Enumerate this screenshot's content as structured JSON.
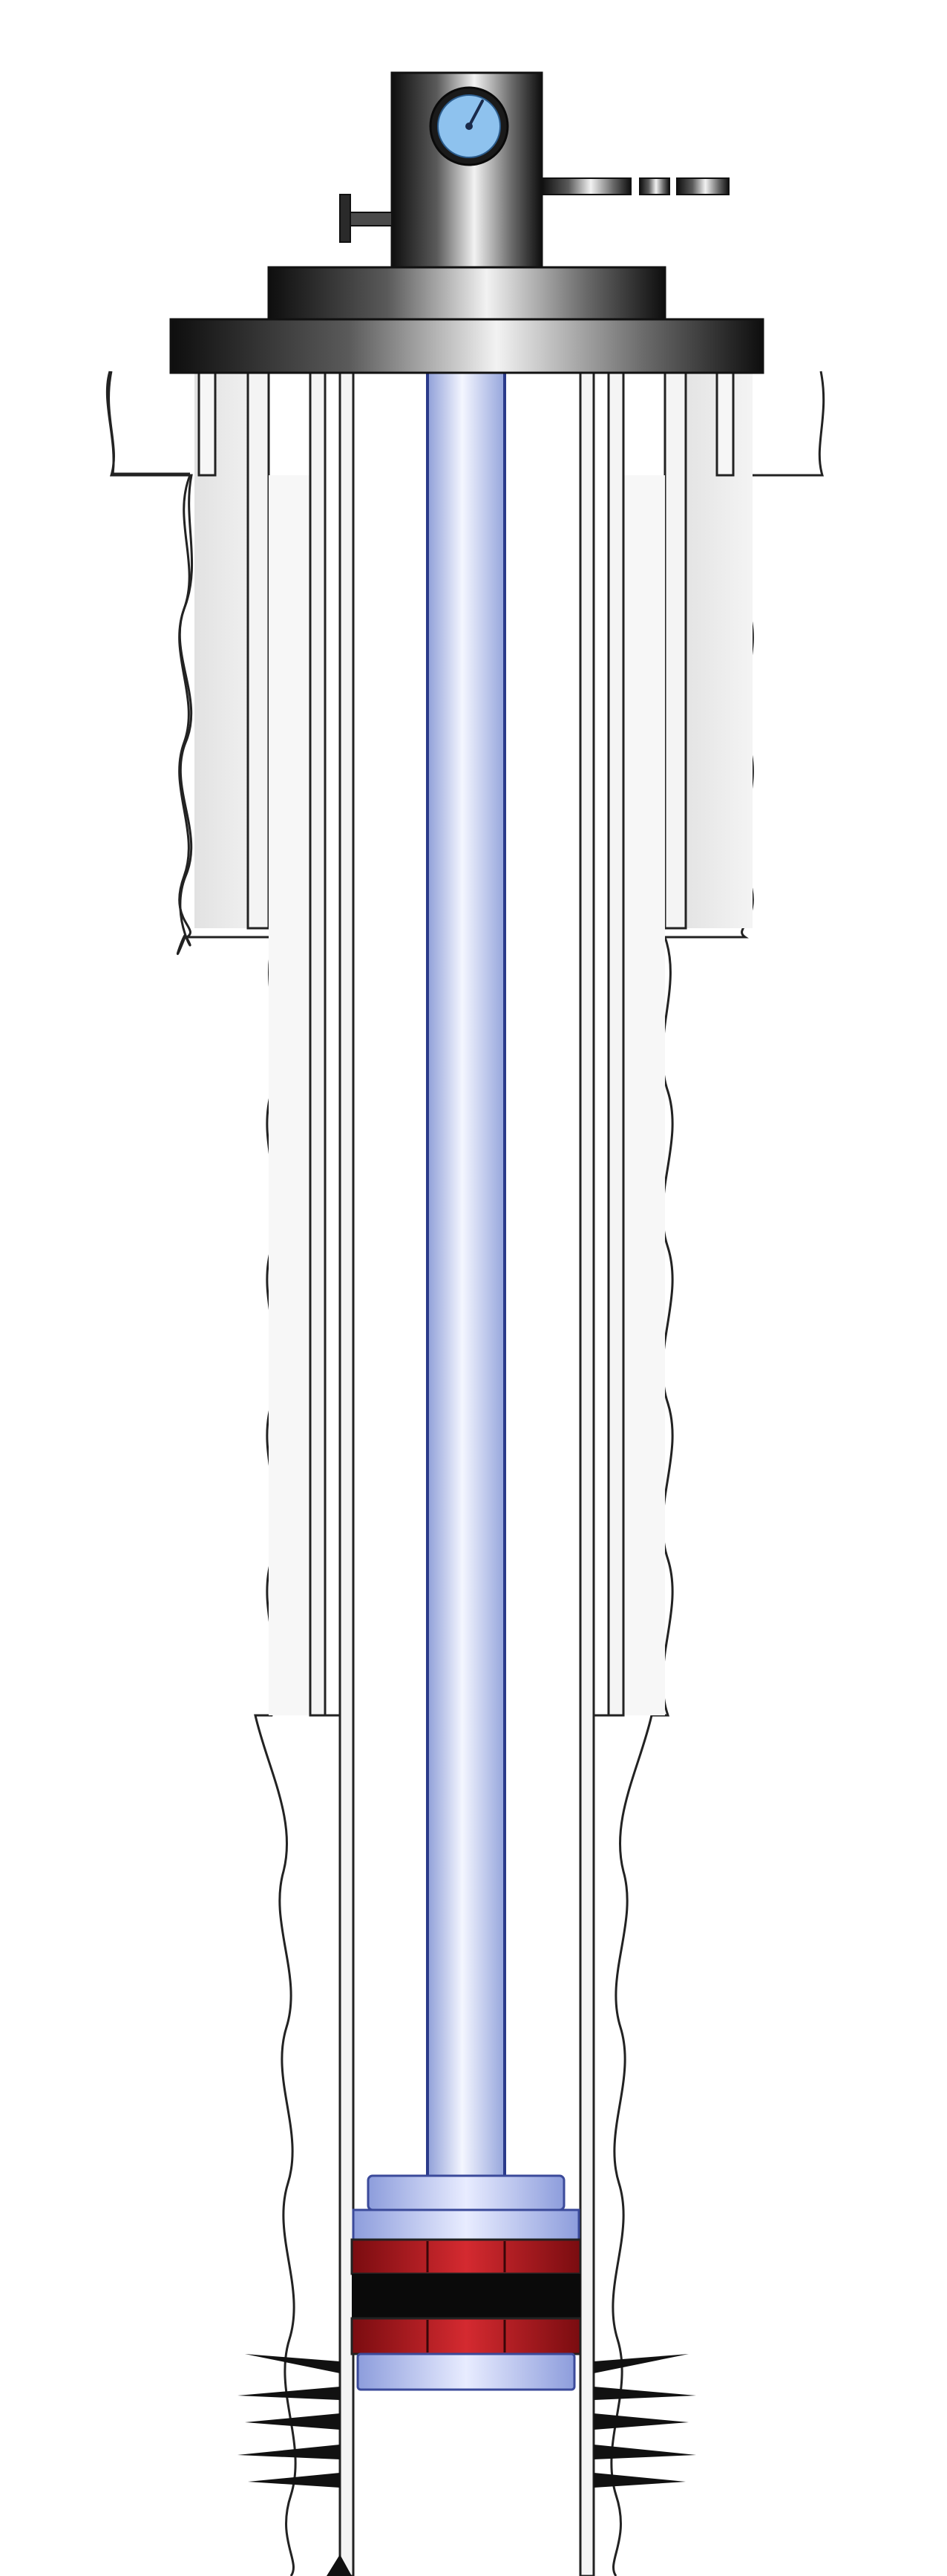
{
  "diagram": {
    "kind": "wellbore cross-section",
    "components": [
      {
        "id": "wellhead",
        "label": ""
      },
      {
        "id": "pressure-gauge",
        "label": ""
      },
      {
        "id": "side-valve",
        "label": ""
      },
      {
        "id": "flow-line",
        "label": ""
      },
      {
        "id": "flange",
        "label": ""
      },
      {
        "id": "conductor-casing",
        "label": ""
      },
      {
        "id": "surface-casing",
        "label": ""
      },
      {
        "id": "production-casing",
        "label": ""
      },
      {
        "id": "tubing",
        "label": ""
      },
      {
        "id": "packer",
        "label": ""
      },
      {
        "id": "perforations",
        "label": ""
      }
    ],
    "colors": {
      "tubing": "#b8c4ec",
      "tubing_edge": "#2a3a8a",
      "packer_rubber": "#c01a22",
      "packer_core": "#0a0a0a",
      "steel_dark": "#1a1a1a",
      "steel_light": "#dcdcdc",
      "casing": "#f2f2f2",
      "formation_line": "#222222",
      "gauge_face": "#8ec2ee",
      "perforation": "#111111"
    }
  }
}
